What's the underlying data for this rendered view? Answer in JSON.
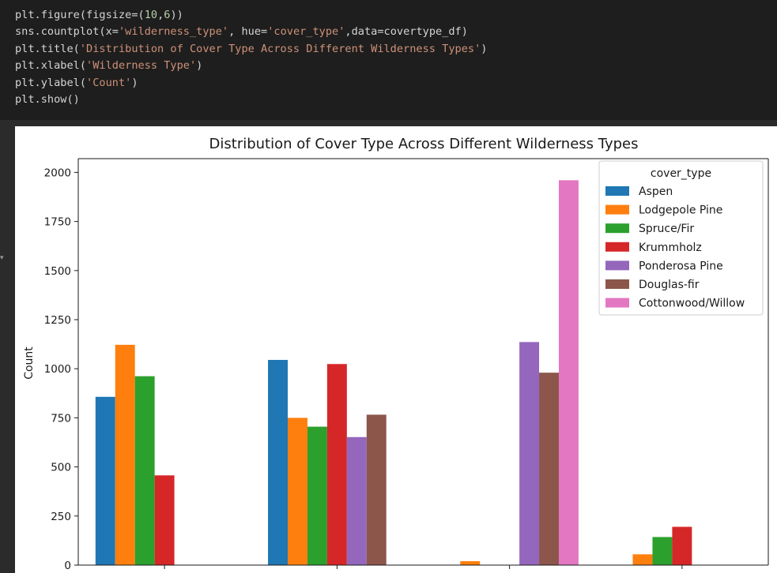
{
  "code_lines": [
    "plt.figure(figsize=(10,6))",
    "sns.countplot(x='wilderness_type', hue='cover_type',data=covertype_df)",
    "plt.title('Distribution of Cover Type Across Different Wilderness Types')",
    "plt.xlabel('Wilderness Type')",
    "plt.ylabel('Count')",
    "plt.show()"
  ],
  "chart_data": {
    "type": "bar",
    "title": "Distribution of Cover Type Across Different Wilderness Types",
    "xlabel": "",
    "ylabel": "Count",
    "ylim": [
      0,
      2070
    ],
    "yticks": [
      0,
      250,
      500,
      750,
      1000,
      1250,
      1500,
      1750,
      2000
    ],
    "categories": [
      "",
      "",
      "",
      ""
    ],
    "legend_title": "cover_type",
    "legend_position": "top-right",
    "grid": false,
    "series": [
      {
        "name": "Aspen",
        "color": "#1f77b4",
        "values": [
          857,
          1045,
          0,
          0
        ]
      },
      {
        "name": "Lodgepole Pine",
        "color": "#ff7f0e",
        "values": [
          1122,
          750,
          20,
          55
        ]
      },
      {
        "name": "Spruce/Fir",
        "color": "#2ca02c",
        "values": [
          962,
          705,
          0,
          143
        ]
      },
      {
        "name": "Krummholz",
        "color": "#d62728",
        "values": [
          457,
          1024,
          0,
          195
        ]
      },
      {
        "name": "Ponderosa Pine",
        "color": "#9467bd",
        "values": [
          0,
          652,
          1136,
          0
        ]
      },
      {
        "name": "Douglas-fir",
        "color": "#8c564b",
        "values": [
          0,
          766,
          980,
          0
        ]
      },
      {
        "name": "Cottonwood/Willow",
        "color": "#e377c2",
        "values": [
          0,
          0,
          1960,
          0
        ]
      }
    ]
  }
}
